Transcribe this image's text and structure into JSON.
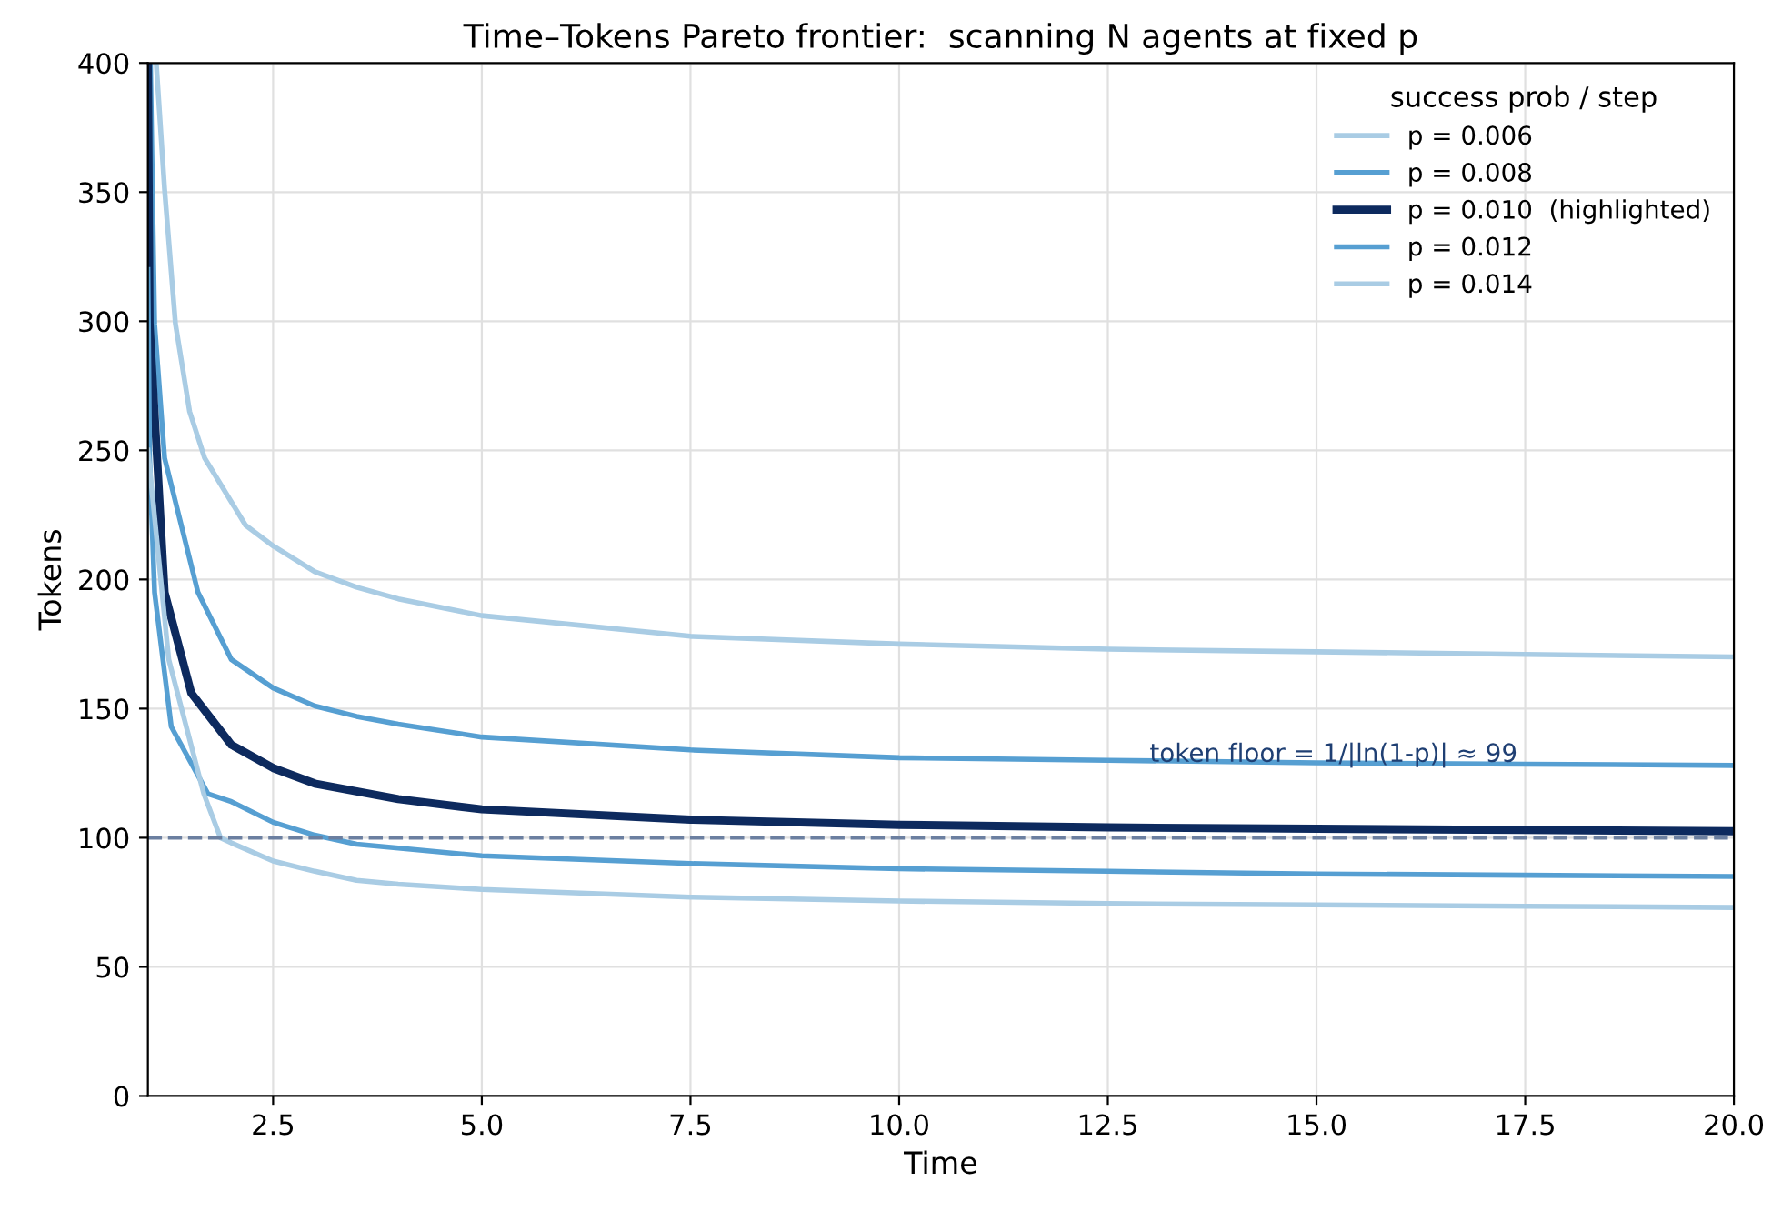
{
  "chart_data": {
    "type": "line",
    "title": "Time–Tokens Pareto frontier:  scanning N agents at fixed p",
    "xlabel": "Time",
    "ylabel": "Tokens",
    "legend_title": "success prob / step",
    "xlim": [
      1,
      20
    ],
    "xticks": [
      2.5,
      {
        "value": 5,
        "label": "5.0"
      },
      7.5,
      {
        "value": 10,
        "label": "10.0"
      },
      12.5,
      {
        "value": 15,
        "label": "15.0"
      },
      17.5,
      {
        "value": 20,
        "label": "20.0"
      }
    ],
    "ylim": [
      0,
      400
    ],
    "yticks": [
      0,
      50,
      100,
      150,
      200,
      250,
      300,
      350,
      400
    ],
    "grid": true,
    "legend": "top right",
    "series": [
      {
        "name": "p = 0.006",
        "color": "#a9cce4",
        "x": [
          1.1,
          1.2,
          1.33,
          1.5,
          1.68,
          2.17,
          2.5,
          3,
          3.5,
          4,
          5,
          7.5,
          10,
          12.5,
          15,
          17.5,
          20
        ],
        "values": [
          400,
          351,
          299,
          265,
          247,
          221,
          213,
          203,
          197,
          192.5,
          186,
          178,
          175,
          173,
          172,
          171,
          170
        ]
      },
      {
        "name": "p = 0.008",
        "color": "#569fd2",
        "x": [
          1.03,
          1.08,
          1.2,
          1.6,
          2,
          2.5,
          3,
          3.5,
          4,
          5,
          7.5,
          10,
          12.5,
          15,
          17.5,
          20
        ],
        "values": [
          400,
          299,
          247,
          195,
          169,
          158,
          151,
          147,
          144,
          139,
          134,
          131,
          130,
          129,
          128.5,
          128
        ]
      },
      {
        "name": "p = 0.010  (highlighted)",
        "color": "#0d2a5e",
        "x": [
          1.0,
          1.02,
          1.2,
          1.52,
          2,
          2.5,
          3,
          3.5,
          4,
          5,
          7.5,
          10,
          12.5,
          15,
          17.5,
          20
        ],
        "values": [
          400,
          299,
          195,
          156,
          136,
          127,
          121,
          118,
          115,
          111,
          107,
          105,
          104,
          103.5,
          103,
          102.5
        ]
      },
      {
        "name": "p = 0.012",
        "color": "#569fd2",
        "x": [
          1.0,
          1.02,
          1.08,
          1.28,
          1.72,
          2,
          2.5,
          3,
          3.5,
          4,
          5,
          7.5,
          10,
          12.5,
          15,
          17.5,
          20
        ],
        "values": [
          320,
          247,
          195,
          143,
          117,
          114,
          106,
          101,
          97.5,
          96,
          93,
          90,
          88,
          87,
          86,
          85.5,
          85
        ]
      },
      {
        "name": "p = 0.014",
        "color": "#a9cce4",
        "x": [
          1.0,
          1.25,
          1.67,
          1.87,
          2,
          2.5,
          3,
          3.5,
          4,
          5,
          7.5,
          10,
          12.5,
          15,
          17.5,
          20
        ],
        "values": [
          250,
          169,
          117,
          100,
          98,
          91,
          87,
          83.5,
          82,
          80,
          77,
          75.5,
          74.5,
          74,
          73.5,
          73
        ]
      }
    ],
    "ref_lines": [
      {
        "axis": "y",
        "value": 100,
        "color": "#6b7fa0",
        "line_style": "dashed"
      }
    ],
    "annotations": [
      {
        "text": "token floor = 1/|ln(1-p)| ≈ 99",
        "x": 13,
        "y": 132
      }
    ]
  }
}
